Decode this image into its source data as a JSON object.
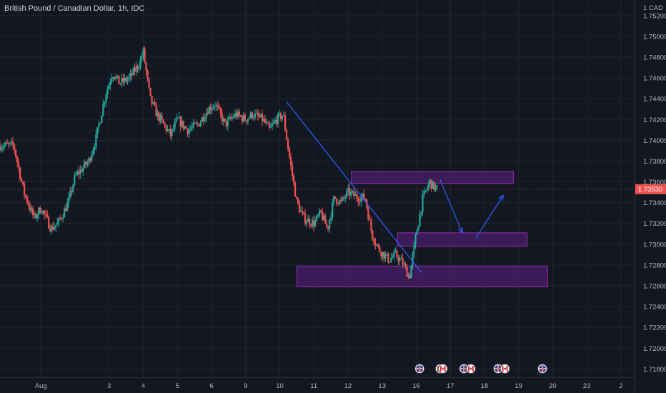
{
  "header": {
    "symbol_title": "British Pound / Canadian Dollar, 1h, IDC"
  },
  "chart_data": {
    "type": "candlestick",
    "title": "British Pound / Canadian Dollar, 1h, IDC",
    "currency_label": "1 CAD",
    "y_ticks": [
      "1.75200",
      "1.75000",
      "1.74800",
      "1.74600",
      "1.74400",
      "1.74200",
      "1.74000",
      "1.73800",
      "1.73600",
      "1.73400",
      "1.73200",
      "1.73000",
      "1.72800",
      "1.72600",
      "1.72400",
      "1.72200",
      "1.72000",
      "1.71800"
    ],
    "ylim": [
      1.7172,
      1.7535
    ],
    "x_ticks": [
      "Aug",
      "3",
      "4",
      "5",
      "6",
      "9",
      "10",
      "11",
      "12",
      "13",
      "16",
      "17",
      "18",
      "19",
      "20",
      "23",
      "2"
    ],
    "x_tick_positions": [
      1,
      3,
      4,
      5,
      6,
      7,
      8,
      9,
      10,
      11,
      12,
      13,
      14,
      15,
      16,
      17,
      18
    ],
    "xlim": [
      -0.2,
      18.4
    ],
    "current_price": 1.7353,
    "current_price_label": "1.73530",
    "price_path": [
      [
        0.2,
        1.7395
      ],
      [
        0.5,
        1.735
      ],
      [
        0.8,
        1.7325
      ],
      [
        1.0,
        1.7335
      ],
      [
        1.3,
        1.7315
      ],
      [
        1.5,
        1.732
      ],
      [
        1.8,
        1.734
      ],
      [
        2.0,
        1.7365
      ],
      [
        2.4,
        1.738
      ],
      [
        2.6,
        1.74
      ],
      [
        2.9,
        1.7445
      ],
      [
        3.1,
        1.7465
      ],
      [
        3.3,
        1.7455
      ],
      [
        3.6,
        1.746
      ],
      [
        3.9,
        1.7475
      ],
      [
        4.0,
        1.7485
      ],
      [
        4.2,
        1.744
      ],
      [
        4.4,
        1.7425
      ],
      [
        4.8,
        1.7405
      ],
      [
        5.0,
        1.742
      ],
      [
        5.3,
        1.741
      ],
      [
        5.6,
        1.7415
      ],
      [
        5.9,
        1.743
      ],
      [
        6.1,
        1.7435
      ],
      [
        6.4,
        1.7415
      ],
      [
        6.7,
        1.7425
      ],
      [
        7.0,
        1.742
      ],
      [
        7.2,
        1.7425
      ],
      [
        7.5,
        1.742
      ],
      [
        7.7,
        1.741
      ],
      [
        7.9,
        1.742
      ],
      [
        8.1,
        1.7425
      ],
      [
        8.3,
        1.738
      ],
      [
        8.5,
        1.734
      ],
      [
        8.7,
        1.7325
      ],
      [
        9.0,
        1.732
      ],
      [
        9.2,
        1.733
      ],
      [
        9.4,
        1.7315
      ],
      [
        9.6,
        1.7345
      ],
      [
        9.8,
        1.734
      ],
      [
        10.0,
        1.735
      ],
      [
        10.3,
        1.7345
      ],
      [
        10.5,
        1.7345
      ],
      [
        10.7,
        1.731
      ],
      [
        10.9,
        1.7295
      ],
      [
        11.2,
        1.7285
      ],
      [
        11.4,
        1.729
      ],
      [
        11.6,
        1.7282
      ],
      [
        11.8,
        1.7268
      ],
      [
        12.0,
        1.731
      ],
      [
        12.2,
        1.7345
      ],
      [
        12.4,
        1.736
      ],
      [
        12.5,
        1.7355
      ],
      [
        12.65,
        1.7353
      ]
    ],
    "annotations": {
      "zones": [
        {
          "x": [
            10.1,
            14.85
          ],
          "y": [
            1.73585,
            1.737
          ]
        },
        {
          "x": [
            11.45,
            15.25
          ],
          "y": [
            1.7298,
            1.7311
          ]
        },
        {
          "x": [
            8.5,
            15.85
          ],
          "y": [
            1.7259,
            1.7279
          ]
        }
      ],
      "trendline": {
        "x": [
          8.2,
          12.15
        ],
        "y": [
          1.7437,
          1.7273
        ]
      },
      "arrows": [
        {
          "x": [
            12.7,
            13.35
          ],
          "y": [
            1.7362,
            1.7311
          ]
        },
        {
          "x": [
            13.75,
            14.55
          ],
          "y": [
            1.7306,
            1.7347
          ]
        }
      ]
    },
    "event_icons": [
      {
        "x": 12.1,
        "kind": "uk-flag-icon"
      },
      {
        "x": 12.7,
        "kind": "canada-flag-icon"
      },
      {
        "x": 12.78,
        "kind": "canada-flag-icon"
      },
      {
        "x": 13.4,
        "kind": "uk-flag-icon"
      },
      {
        "x": 13.6,
        "kind": "canada-flag-icon"
      },
      {
        "x": 14.4,
        "kind": "uk-flag-icon"
      },
      {
        "x": 14.6,
        "kind": "canada-flag-icon"
      },
      {
        "x": 15.7,
        "kind": "uk-flag-icon"
      }
    ],
    "colors": {
      "background": "#131722",
      "grid": "#1f2430",
      "text": "#b2b5be",
      "up": "#26a69a",
      "down": "#ef5350",
      "zone_fill": "#4a1f6b",
      "zone_stroke": "#9c27b0",
      "line": "#2962ff",
      "price_tag": "#ef5350"
    },
    "grid": true
  }
}
